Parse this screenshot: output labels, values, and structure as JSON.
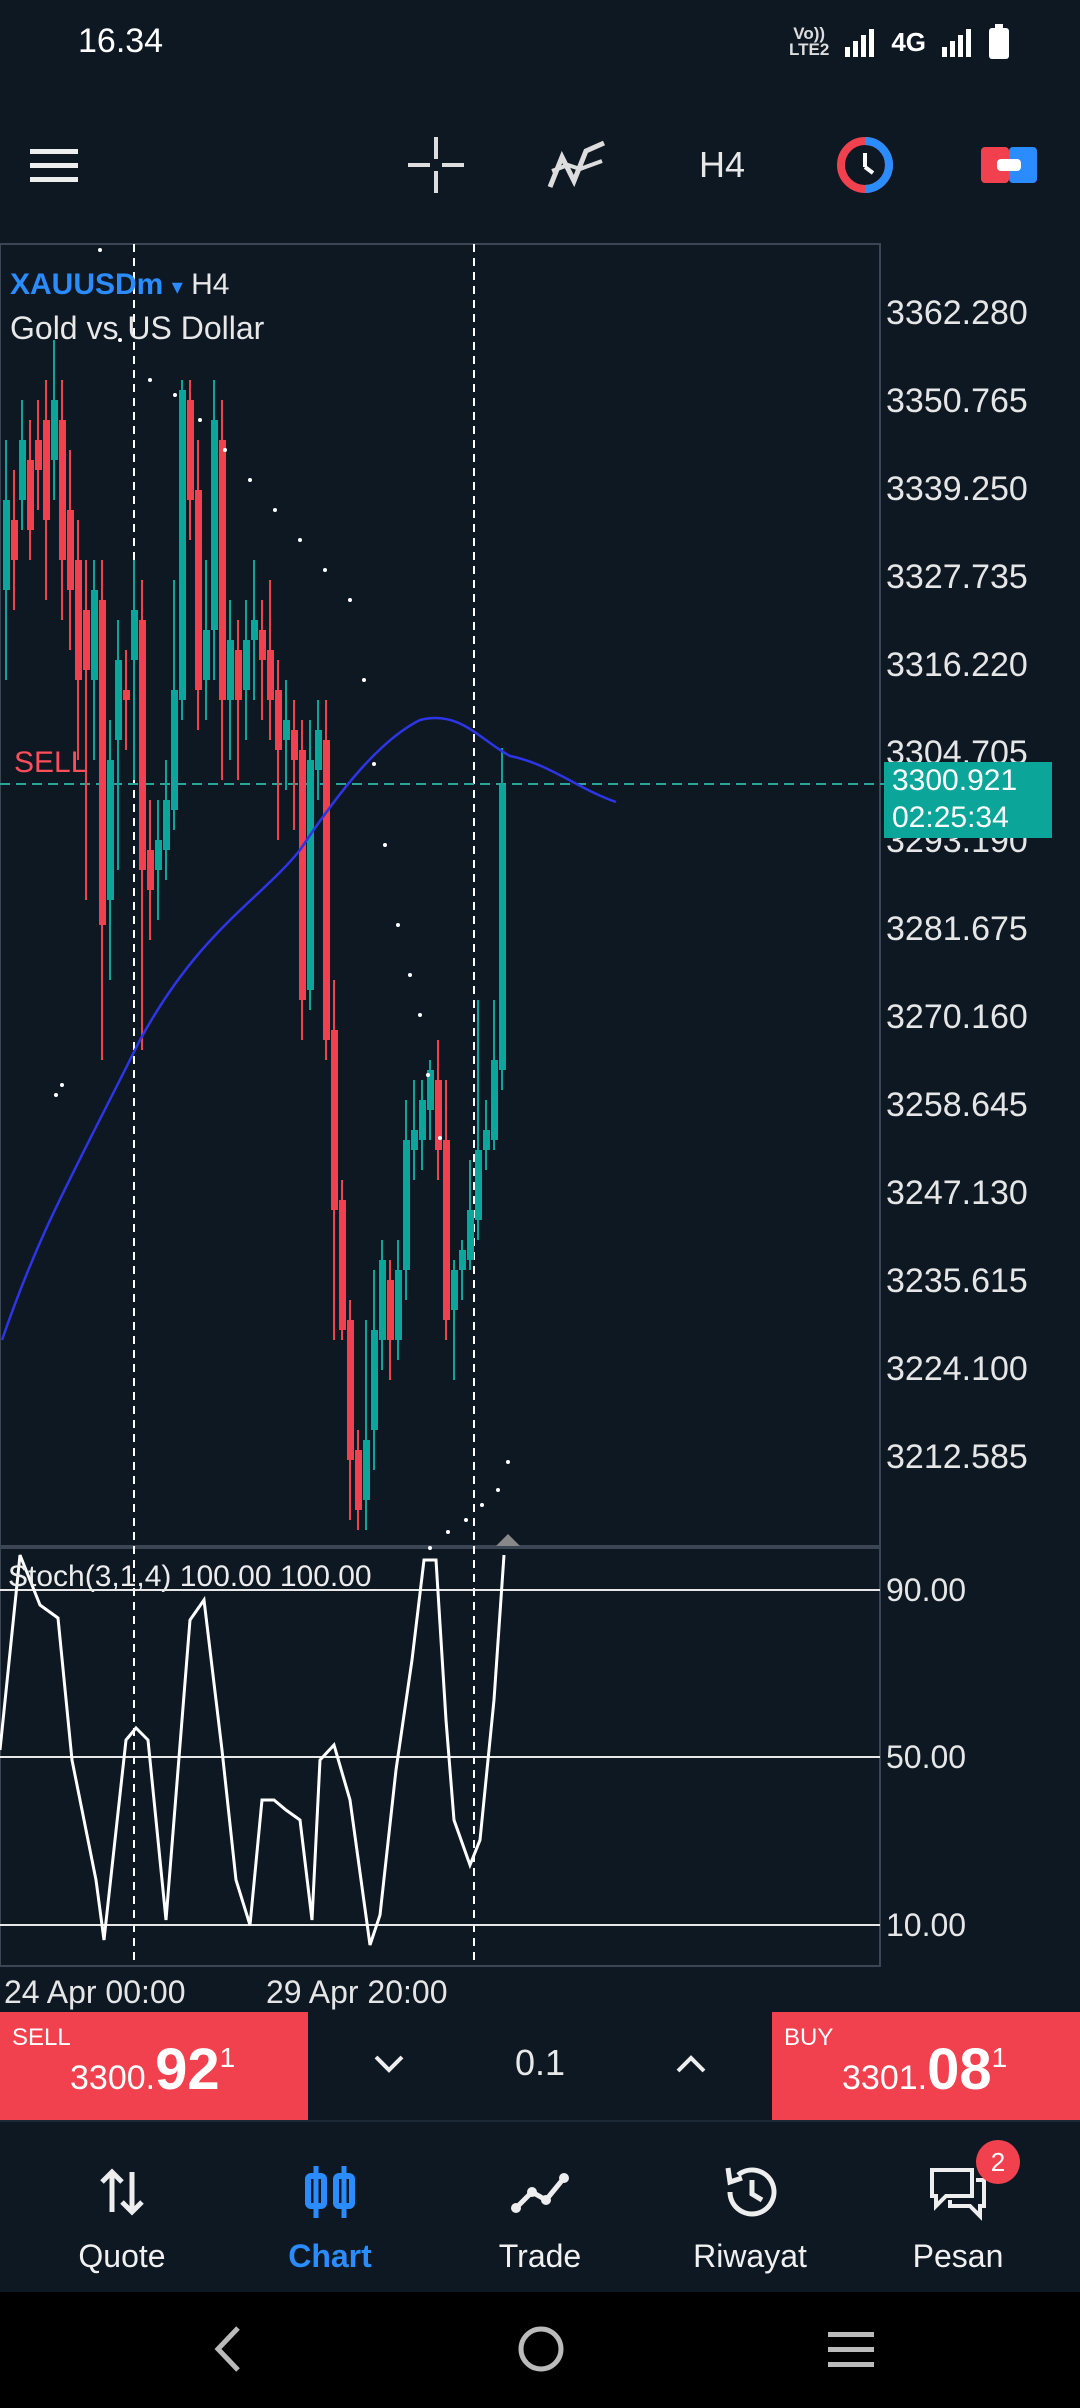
{
  "status_bar": {
    "time": "16.34",
    "volte": "Vo))",
    "lte": "LTE2",
    "network": "4G"
  },
  "toolbar": {
    "timeframe": "H4",
    "icons": [
      "menu-icon",
      "crosshair-icon",
      "indicators-icon",
      "timeframe-button",
      "one-click-trading-icon",
      "connection-icon"
    ]
  },
  "chart": {
    "symbol": "XAUUSDm",
    "symbol_arrow": "▾",
    "timeframe": "H4",
    "description": "Gold vs US Dollar",
    "sell_label": "SELL",
    "current_price": "3300.921",
    "countdown": "02:25:34",
    "price_axis": [
      "3362.280",
      "3350.765",
      "3339.250",
      "3327.735",
      "3316.220",
      "3304.705",
      "3293.190",
      "3281.675",
      "3270.160",
      "3258.645",
      "3247.130",
      "3235.615",
      "3224.100",
      "3212.585"
    ],
    "dates": [
      "24 Apr 00:00",
      "29 Apr 20:00"
    ],
    "colors": {
      "bull": "#0ca59a",
      "bear": "#f1404e",
      "ma": "#2d35e6",
      "background": "#0d1823"
    }
  },
  "stochastic": {
    "title": "Stoch(3,1,4) 100.00 100.00",
    "levels": [
      "90.00",
      "50.00",
      "10.00"
    ]
  },
  "trade": {
    "sell_tag": "SELL",
    "sell_small": "3300.",
    "sell_big": "92",
    "sell_sup": "1",
    "buy_tag": "BUY",
    "buy_small": "3301.",
    "buy_big": "08",
    "buy_sup": "1",
    "lot": "0.1"
  },
  "nav": {
    "items": [
      {
        "label": "Quote",
        "icon": "quote-icon"
      },
      {
        "label": "Chart",
        "icon": "chart-icon"
      },
      {
        "label": "Trade",
        "icon": "trade-icon"
      },
      {
        "label": "Riwayat",
        "icon": "history-icon"
      },
      {
        "label": "Pesan",
        "icon": "messages-icon"
      }
    ],
    "active": "Chart",
    "badge": "2"
  }
}
